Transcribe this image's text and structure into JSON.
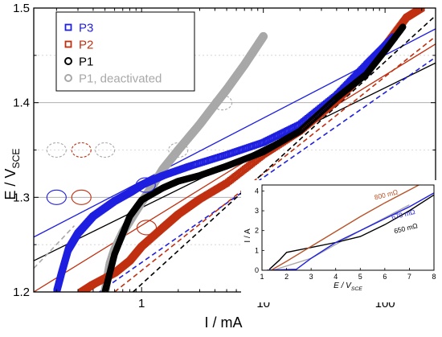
{
  "chart_data": [
    {
      "type": "scatter",
      "xlabel": "I / mA",
      "ylabel": "E / VSCE",
      "xscale": "log",
      "xlim": [
        0.13,
        260
      ],
      "ylim": [
        1.2,
        1.5
      ],
      "x_ticks": [
        {
          "value": 1,
          "label": "1"
        },
        {
          "value": 10,
          "label": "10"
        },
        {
          "value": 100,
          "label": "100"
        }
      ],
      "y_ticks": [
        {
          "value": 1.2,
          "label": "1.2"
        },
        {
          "value": 1.3,
          "label": "1.3"
        },
        {
          "value": 1.4,
          "label": "1.4"
        },
        {
          "value": 1.5,
          "label": "1.5"
        }
      ],
      "grid": "horizontal gray lines at 1.30 and 1.40 (solid), dashed at 1.25, 1.35, 1.45",
      "legend_position": "top-left",
      "series": [
        {
          "name": "P3",
          "color": "#1f1fe0",
          "marker": "square",
          "x": [
            0.2,
            0.22,
            0.25,
            0.3,
            0.4,
            0.6,
            0.8,
            1.0,
            1.5,
            2.5,
            5,
            10,
            20,
            40,
            70,
            100,
            120
          ],
          "y": [
            1.2,
            1.22,
            1.245,
            1.262,
            1.28,
            1.296,
            1.305,
            1.313,
            1.323,
            1.333,
            1.345,
            1.358,
            1.377,
            1.408,
            1.44,
            1.46,
            1.47
          ]
        },
        {
          "name": "P2",
          "color": "#c03010",
          "marker": "square",
          "x": [
            0.32,
            0.4,
            0.6,
            0.8,
            1.0,
            1.5,
            2,
            3,
            5,
            10,
            20,
            40,
            60,
            100,
            150,
            200
          ],
          "y": [
            1.2,
            1.208,
            1.22,
            1.233,
            1.248,
            1.268,
            1.282,
            1.298,
            1.315,
            1.345,
            1.37,
            1.402,
            1.425,
            1.46,
            1.49,
            1.5
          ]
        },
        {
          "name": "P1",
          "color": "#000000",
          "marker": "circle",
          "x": [
            0.5,
            0.6,
            0.8,
            1.0,
            1.5,
            2,
            3,
            5,
            10,
            20,
            40,
            70,
            100,
            140
          ],
          "y": [
            1.2,
            1.24,
            1.28,
            1.297,
            1.31,
            1.317,
            1.323,
            1.333,
            1.348,
            1.37,
            1.405,
            1.43,
            1.455,
            1.48
          ]
        },
        {
          "name": "P1, deactivated",
          "color": "#a8a8a8",
          "marker": "circle",
          "x": [
            0.5,
            0.55,
            0.6,
            0.7,
            0.8,
            1.0,
            1.2,
            1.5,
            2,
            3,
            4,
            5,
            7,
            10
          ],
          "y": [
            1.2,
            1.23,
            1.245,
            1.263,
            1.275,
            1.295,
            1.31,
            1.33,
            1.35,
            1.377,
            1.398,
            1.414,
            1.44,
            1.47
          ]
        }
      ],
      "fit_lines": [
        {
          "color": "#1f1fe0",
          "x": [
            0.13,
            260
          ],
          "y": [
            1.258,
            1.478
          ]
        },
        {
          "color": "#c03010",
          "x": [
            0.13,
            260
          ],
          "y": [
            1.2,
            1.462
          ]
        },
        {
          "color": "#000000",
          "x": [
            0.13,
            260
          ],
          "y": [
            1.233,
            1.442
          ]
        },
        {
          "color": "#1f1fe0",
          "dashed": true,
          "x": [
            0.45,
            260
          ],
          "y": [
            1.2,
            1.448
          ]
        },
        {
          "color": "#c03010",
          "dashed": true,
          "x": [
            0.6,
            260
          ],
          "y": [
            1.2,
            1.47
          ]
        },
        {
          "color": "#000000",
          "dashed": true,
          "x": [
            0.85,
            260
          ],
          "y": [
            1.2,
            1.492
          ]
        },
        {
          "color": "#a8a8a8",
          "dashed": true,
          "x": [
            0.13,
            0.28
          ],
          "y": [
            1.225,
            1.27
          ]
        }
      ],
      "circle_markers": [
        {
          "color": "#1f1fe0",
          "x": 0.2,
          "y": 1.3
        },
        {
          "color": "#c03010",
          "x": 0.32,
          "y": 1.3
        },
        {
          "color": "#1f1fe0",
          "x": 1.08,
          "y": 1.313
        },
        {
          "color": "#c03010",
          "x": 1.1,
          "y": 1.268
        },
        {
          "color": "#aaaaaa",
          "dashed": true,
          "x": 0.2,
          "y": 1.35
        },
        {
          "color": "#c03010",
          "dashed": true,
          "x": 0.32,
          "y": 1.35
        },
        {
          "color": "#aaaaaa",
          "dashed": true,
          "x": 0.5,
          "y": 1.35
        },
        {
          "color": "#aaaaaa",
          "dashed": true,
          "x": 2.0,
          "y": 1.35
        },
        {
          "color": "#aaaaaa",
          "dashed": true,
          "x": 4.6,
          "y": 1.4
        }
      ]
    },
    {
      "type": "line",
      "xlabel": "E / VSCE",
      "ylabel": "I / A",
      "xlim": [
        1,
        8
      ],
      "ylim": [
        0,
        4.3
      ],
      "x_ticks": [
        "1",
        "2",
        "3",
        "4",
        "5",
        "6",
        "7",
        "8"
      ],
      "y_ticks": [
        "0",
        "1",
        "2",
        "3",
        "4"
      ],
      "series": [
        {
          "color": "#a8a8a8",
          "x": [
            1.5,
            3,
            5,
            7
          ],
          "y": [
            0.02,
            0.6,
            2.0,
            3.3
          ]
        },
        {
          "color": "#000000",
          "x": [
            1.3,
            1.7,
            2.0,
            3,
            4,
            5,
            6,
            7,
            8
          ],
          "y": [
            0.05,
            0.5,
            0.9,
            1.15,
            1.4,
            1.7,
            2.3,
            3.0,
            3.8
          ]
        },
        {
          "color": "#1f1fe0",
          "x": [
            1.2,
            2.4,
            3,
            4,
            5,
            6,
            7,
            8
          ],
          "y": [
            0.0,
            0.05,
            0.6,
            1.4,
            2.0,
            2.6,
            3.2,
            3.9
          ]
        },
        {
          "color": "#b8542a",
          "x": [
            1.4,
            2,
            3,
            4,
            5,
            6,
            7,
            8
          ],
          "y": [
            0.02,
            0.45,
            1.2,
            1.95,
            2.7,
            3.4,
            4.05,
            4.7
          ]
        }
      ],
      "annotations": [
        {
          "text": "800 mΩ",
          "color": "#b8542a"
        },
        {
          "text": "670 mΩ",
          "color": "#1f1fe0"
        },
        {
          "text": "650 mΩ",
          "color": "#000000"
        }
      ]
    }
  ]
}
